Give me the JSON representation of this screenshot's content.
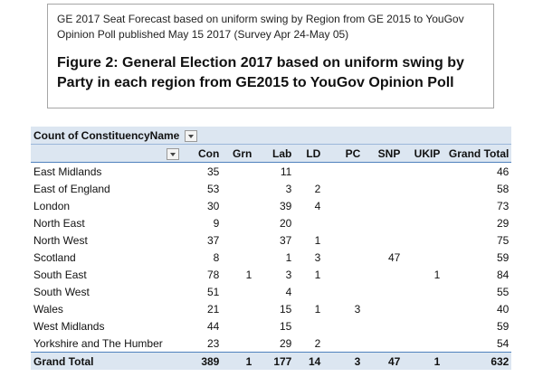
{
  "note": {
    "subtitle": "GE 2017 Seat Forecast based on uniform swing by Region from GE 2015  to YouGov Opinion Poll published May 15 2017  (Survey Apr 24-May 05)",
    "figure_title": "Figure 2: General Election 2017 based on uniform swing by Party in each region from GE2015 to YouGov Opinion Poll"
  },
  "pivot": {
    "title": "Count of ConstituencyName",
    "columns": [
      "Con",
      "Grn",
      "Lab",
      "LD",
      "PC",
      "SNP",
      "UKIP",
      "Grand Total"
    ],
    "rows": [
      {
        "label": "East Midlands",
        "values": [
          "35",
          "",
          "11",
          "",
          "",
          "",
          "",
          "46"
        ]
      },
      {
        "label": "East of England",
        "values": [
          "53",
          "",
          "3",
          "2",
          "",
          "",
          "",
          "58"
        ]
      },
      {
        "label": "London",
        "values": [
          "30",
          "",
          "39",
          "4",
          "",
          "",
          "",
          "73"
        ]
      },
      {
        "label": "North East",
        "values": [
          "9",
          "",
          "20",
          "",
          "",
          "",
          "",
          "29"
        ]
      },
      {
        "label": "North West",
        "values": [
          "37",
          "",
          "37",
          "1",
          "",
          "",
          "",
          "75"
        ]
      },
      {
        "label": "Scotland",
        "values": [
          "8",
          "",
          "1",
          "3",
          "",
          "47",
          "",
          "59"
        ]
      },
      {
        "label": "South East",
        "values": [
          "78",
          "1",
          "3",
          "1",
          "",
          "",
          "1",
          "84"
        ]
      },
      {
        "label": "South West",
        "values": [
          "51",
          "",
          "4",
          "",
          "",
          "",
          "",
          "55"
        ]
      },
      {
        "label": "Wales",
        "values": [
          "21",
          "",
          "15",
          "1",
          "3",
          "",
          "",
          "40"
        ]
      },
      {
        "label": "West Midlands",
        "values": [
          "44",
          "",
          "15",
          "",
          "",
          "",
          "",
          "59"
        ]
      },
      {
        "label": "Yorkshire and The Humber",
        "values": [
          "23",
          "",
          "29",
          "2",
          "",
          "",
          "",
          "54"
        ]
      }
    ],
    "total": {
      "label": "Grand Total",
      "values": [
        "389",
        "1",
        "177",
        "14",
        "3",
        "47",
        "1",
        "632"
      ]
    }
  }
}
